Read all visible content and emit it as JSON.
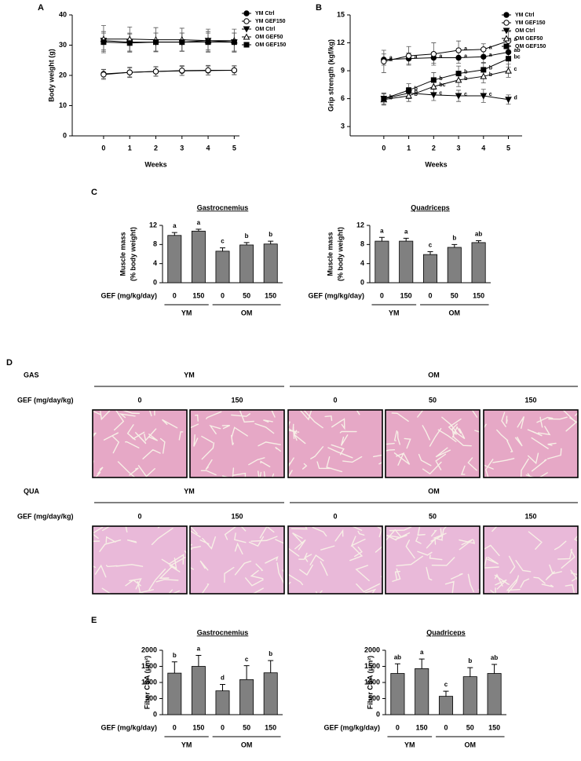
{
  "chart_data": [
    {
      "panel": "A",
      "type": "line",
      "ylabel": "Body weight (g)",
      "xlabel": "Weeks",
      "x": [
        0,
        1,
        2,
        3,
        4,
        5
      ],
      "xlim": [
        -1.2,
        5.2
      ],
      "xticks": [
        0,
        1,
        2,
        3,
        4,
        5
      ],
      "ylim": [
        0,
        40
      ],
      "yticks": [
        0,
        10,
        20,
        30,
        40
      ],
      "legend": "right",
      "series": [
        {
          "name": "YM Ctrl",
          "color": "#000000",
          "marker": "circle",
          "filled": true,
          "values": [
            20.5,
            21,
            21.3,
            21.5,
            21.6,
            21.7
          ],
          "errors": [
            1.5,
            1.5,
            1.5,
            1.5,
            1.5,
            1.4
          ]
        },
        {
          "name": "YM GEF150",
          "color": "#000000",
          "marker": "circle",
          "filled": false,
          "values": [
            20.3,
            21,
            21.3,
            21.6,
            21.7,
            21.7
          ],
          "errors": [
            1.6,
            1.7,
            1.6,
            1.6,
            1.6,
            1.5
          ]
        },
        {
          "name": "OM Ctrl",
          "color": "#000000",
          "marker": "triangle-down",
          "filled": true,
          "values": [
            31.5,
            31,
            31,
            31,
            31.5,
            31
          ],
          "errors": [
            3,
            3,
            3,
            3,
            3,
            3
          ]
        },
        {
          "name": "OM GEF50",
          "color": "#000000",
          "marker": "triangle-up",
          "filled": false,
          "values": [
            32,
            32,
            31.8,
            31.8,
            31.5,
            31.5
          ],
          "errors": [
            4.5,
            4,
            4,
            3.8,
            3.8,
            3.8
          ]
        },
        {
          "name": "OM GEF150",
          "color": "#000000",
          "marker": "square",
          "filled": true,
          "values": [
            31,
            30.7,
            31,
            31,
            31,
            31
          ],
          "errors": [
            3,
            3,
            3,
            3,
            3,
            3
          ]
        }
      ]
    },
    {
      "panel": "B",
      "type": "line",
      "ylabel": "Grip strength (kgf/kg)",
      "xlabel": "Weeks",
      "x": [
        0,
        1,
        2,
        3,
        4,
        5
      ],
      "xlim": [
        -1.35,
        5.55
      ],
      "xticks": [
        0,
        1,
        2,
        3,
        4,
        5
      ],
      "ylim": [
        2,
        15
      ],
      "yticks": [
        3,
        6,
        9,
        12,
        15
      ],
      "legend": "right",
      "series": [
        {
          "name": "YM Ctrl",
          "color": "#000000",
          "marker": "circle",
          "filled": true,
          "values": [
            10.2,
            10.3,
            10.4,
            10.4,
            10.5,
            11.0
          ],
          "errors": [
            0.6,
            0.6,
            0.6,
            0.6,
            0.7,
            0.7
          ],
          "letters": [
            "a",
            "a",
            "a",
            "a",
            "a",
            "ab"
          ]
        },
        {
          "name": "YM GEF150",
          "color": "#000000",
          "marker": "circle",
          "filled": false,
          "values": [
            10.0,
            10.6,
            10.8,
            11.2,
            11.3,
            12.2
          ],
          "errors": [
            1.2,
            1.0,
            1.2,
            1.0,
            0.6,
            1.0
          ],
          "letters": [
            "a",
            null,
            null,
            "a",
            "a",
            "a"
          ]
        },
        {
          "name": "OM Ctrl",
          "color": "#000000",
          "marker": "triangle-down",
          "filled": true,
          "values": [
            6.0,
            6.6,
            6.4,
            6.3,
            6.3,
            5.9
          ],
          "errors": [
            0.6,
            0.6,
            0.6,
            0.6,
            0.7,
            0.5
          ],
          "letters": [
            null,
            "b",
            "c",
            "c",
            "c",
            "d"
          ]
        },
        {
          "name": "OM GEF50",
          "color": "#000000",
          "marker": "triangle-up",
          "filled": false,
          "values": [
            5.9,
            6.3,
            7.3,
            8.0,
            8.4,
            9.0
          ],
          "errors": [
            0.6,
            0.6,
            0.8,
            0.7,
            0.7,
            0.7
          ],
          "letters": [
            "b",
            "b",
            "bc",
            "b",
            "b",
            "c"
          ]
        },
        {
          "name": "OM GEF150",
          "color": "#000000",
          "marker": "square",
          "filled": true,
          "values": [
            6.0,
            6.9,
            8.0,
            8.7,
            9.1,
            10.3
          ],
          "errors": [
            0.6,
            0.7,
            0.8,
            0.8,
            0.8,
            0.9
          ],
          "letters": [
            "b",
            "b",
            "b",
            "b",
            "b",
            "bc"
          ]
        }
      ]
    },
    {
      "panel": "C",
      "type": "bar",
      "title": "Gastrocnemius",
      "ylabel": [
        "Muscle mass",
        "(% body weight)"
      ],
      "xlabel": "GEF (mg/kg/day)",
      "groups": [
        {
          "name": "YM",
          "categories": [
            "0",
            "150"
          ]
        },
        {
          "name": "OM",
          "categories": [
            "0",
            "50",
            "150"
          ]
        }
      ],
      "values": [
        9.9,
        10.8,
        6.6,
        7.9,
        8.1
      ],
      "errors": [
        0.6,
        0.4,
        0.7,
        0.5,
        0.6
      ],
      "letters": [
        "a",
        "a",
        "c",
        "b",
        "b"
      ],
      "color": "#808080",
      "ylim": [
        0,
        12
      ],
      "yticks": [
        0,
        4,
        8,
        12
      ]
    },
    {
      "type": "bar",
      "title": "Quadriceps",
      "ylabel": [
        "Muscle mass",
        "(% body weight)"
      ],
      "xlabel": "GEF (mg/kg/day)",
      "groups": [
        {
          "name": "YM",
          "categories": [
            "0",
            "150"
          ]
        },
        {
          "name": "OM",
          "categories": [
            "0",
            "50",
            "150"
          ]
        }
      ],
      "values": [
        8.7,
        8.7,
        5.9,
        7.4,
        8.4
      ],
      "errors": [
        0.8,
        0.6,
        0.6,
        0.6,
        0.4
      ],
      "letters": [
        "a",
        "a",
        "c",
        "b",
        "ab"
      ],
      "color": "#808080",
      "ylim": [
        0,
        12
      ],
      "yticks": [
        0,
        4,
        8,
        12
      ]
    },
    {
      "panel": "E",
      "type": "bar",
      "title": "Gastrocnemius",
      "ylabel": "Fiber CSA (μm²)",
      "xlabel": "GEF (mg/kg/day)",
      "groups": [
        {
          "name": "YM",
          "categories": [
            "0",
            "150"
          ]
        },
        {
          "name": "OM",
          "categories": [
            "0",
            "50",
            "150"
          ]
        }
      ],
      "values": [
        1290,
        1500,
        740,
        1090,
        1300
      ],
      "errors": [
        350,
        340,
        200,
        430,
        380
      ],
      "letters": [
        "b",
        "a",
        "d",
        "c",
        "b"
      ],
      "color": "#808080",
      "ylim": [
        0,
        2000
      ],
      "yticks": [
        0,
        500,
        1000,
        1500,
        2000
      ]
    },
    {
      "type": "bar",
      "title": "Quadriceps",
      "ylabel": "Fiber CSA (μm²)",
      "xlabel": "GEF (mg/kg/day)",
      "groups": [
        {
          "name": "YM",
          "categories": [
            "0",
            "150"
          ]
        },
        {
          "name": "OM",
          "categories": [
            "0",
            "50",
            "150"
          ]
        }
      ],
      "values": [
        1280,
        1430,
        570,
        1180,
        1280
      ],
      "errors": [
        300,
        300,
        160,
        280,
        280
      ],
      "letters": [
        "ab",
        "a",
        "c",
        "b",
        "ab"
      ],
      "color": "#808080",
      "ylim": [
        0,
        2000
      ],
      "yticks": [
        0,
        500,
        1000,
        1500,
        2000
      ]
    }
  ],
  "histology": {
    "panel": "D",
    "rows": [
      {
        "tissue": "GAS",
        "dose_label": "GEF (mg/day/kg)",
        "groups": [
          {
            "name": "YM",
            "doses": [
              "0",
              "150"
            ]
          },
          {
            "name": "OM",
            "doses": [
              "0",
              "50",
              "150"
            ]
          }
        ]
      },
      {
        "tissue": "QUA",
        "dose_label": "GEF (mg/day/kg)",
        "groups": [
          {
            "name": "YM",
            "doses": [
              "0",
              "150"
            ]
          },
          {
            "name": "OM",
            "doses": [
              "0",
              "50",
              "150"
            ]
          }
        ]
      }
    ]
  }
}
